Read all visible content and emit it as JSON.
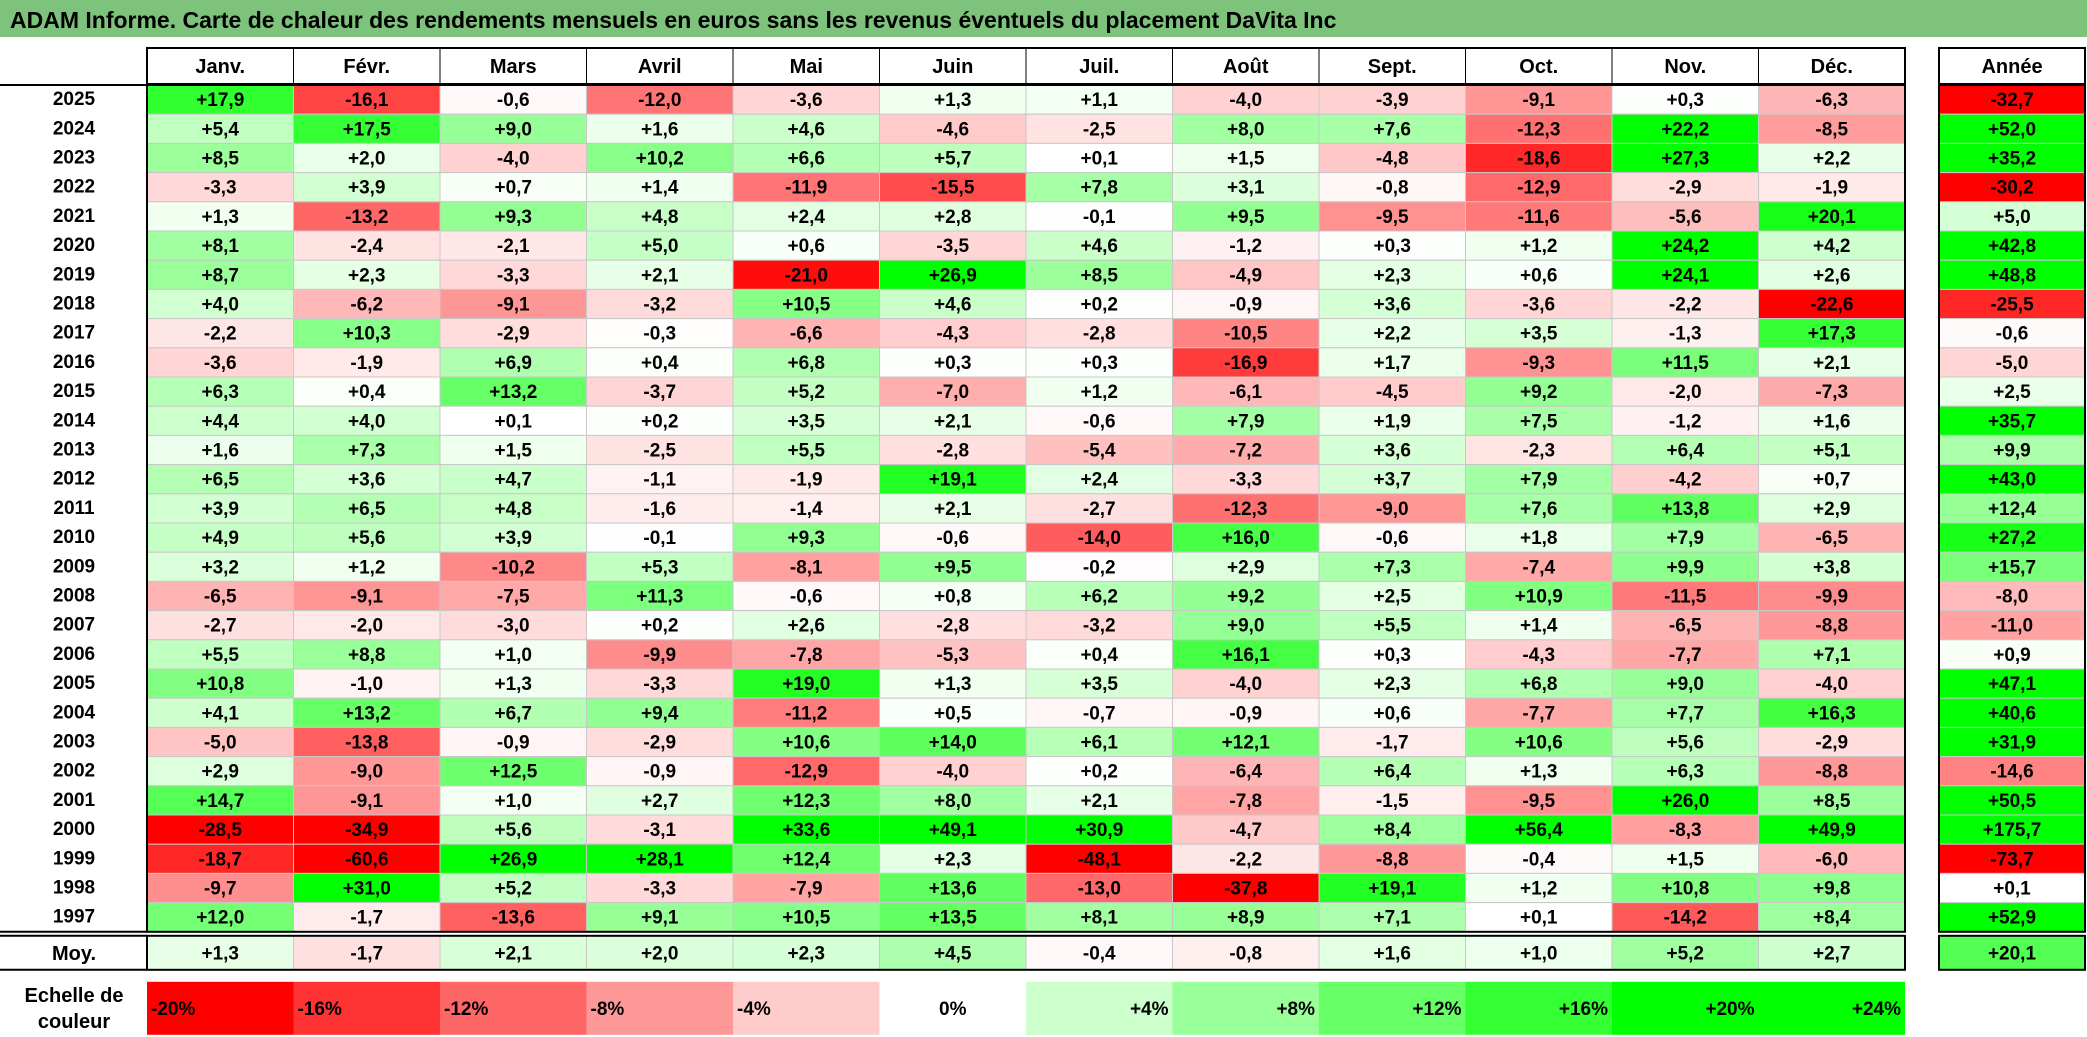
{
  "title": "ADAM Informe. Carte de chaleur des rendements mensuels en euros sans les revenus éventuels du placement DaVita Inc",
  "chart_data": {
    "type": "heatmap",
    "title": "ADAM Informe. Carte de chaleur des rendements mensuels en euros sans les revenus éventuels du placement DaVita Inc",
    "months": [
      "Janv.",
      "Févr.",
      "Mars",
      "Avril",
      "Mai",
      "Juin",
      "Juil.",
      "Août",
      "Sept.",
      "Oct.",
      "Nov.",
      "Déc."
    ],
    "year_header": "Année",
    "avg_label": "Moy.",
    "rows": [
      {
        "year": "2025",
        "values": [
          "+17,9",
          "-16,1",
          "-0,6",
          "-12,0",
          "-3,6",
          "+1,3",
          "+1,1",
          "-4,0",
          "-3,9",
          "-9,1",
          "+0,3",
          "-6,3"
        ],
        "total": "-32,7"
      },
      {
        "year": "2024",
        "values": [
          "+5,4",
          "+17,5",
          "+9,0",
          "+1,6",
          "+4,6",
          "-4,6",
          "-2,5",
          "+8,0",
          "+7,6",
          "-12,3",
          "+22,2",
          "-8,5"
        ],
        "total": "+52,0"
      },
      {
        "year": "2023",
        "values": [
          "+8,5",
          "+2,0",
          "-4,0",
          "+10,2",
          "+6,6",
          "+5,7",
          "+0,1",
          "+1,5",
          "-4,8",
          "-18,6",
          "+27,3",
          "+2,2"
        ],
        "total": "+35,2"
      },
      {
        "year": "2022",
        "values": [
          "-3,3",
          "+3,9",
          "+0,7",
          "+1,4",
          "-11,9",
          "-15,5",
          "+7,8",
          "+3,1",
          "-0,8",
          "-12,9",
          "-2,9",
          "-1,9"
        ],
        "total": "-30,2"
      },
      {
        "year": "2021",
        "values": [
          "+1,3",
          "-13,2",
          "+9,3",
          "+4,8",
          "+2,4",
          "+2,8",
          "-0,1",
          "+9,5",
          "-9,5",
          "-11,6",
          "-5,6",
          "+20,1"
        ],
        "total": "+5,0"
      },
      {
        "year": "2020",
        "values": [
          "+8,1",
          "-2,4",
          "-2,1",
          "+5,0",
          "+0,6",
          "-3,5",
          "+4,6",
          "-1,2",
          "+0,3",
          "+1,2",
          "+24,2",
          "+4,2"
        ],
        "total": "+42,8"
      },
      {
        "year": "2019",
        "values": [
          "+8,7",
          "+2,3",
          "-3,3",
          "+2,1",
          "-21,0",
          "+26,9",
          "+8,5",
          "-4,9",
          "+2,3",
          "+0,6",
          "+24,1",
          "+2,6"
        ],
        "total": "+48,8"
      },
      {
        "year": "2018",
        "values": [
          "+4,0",
          "-6,2",
          "-9,1",
          "-3,2",
          "+10,5",
          "+4,6",
          "+0,2",
          "-0,9",
          "+3,6",
          "-3,6",
          "-2,2",
          "-22,6"
        ],
        "total": "-25,5"
      },
      {
        "year": "2017",
        "values": [
          "-2,2",
          "+10,3",
          "-2,9",
          "-0,3",
          "-6,6",
          "-4,3",
          "-2,8",
          "-10,5",
          "+2,2",
          "+3,5",
          "-1,3",
          "+17,3"
        ],
        "total": "-0,6"
      },
      {
        "year": "2016",
        "values": [
          "-3,6",
          "-1,9",
          "+6,9",
          "+0,4",
          "+6,8",
          "+0,3",
          "+0,3",
          "-16,9",
          "+1,7",
          "-9,3",
          "+11,5",
          "+2,1"
        ],
        "total": "-5,0"
      },
      {
        "year": "2015",
        "values": [
          "+6,3",
          "+0,4",
          "+13,2",
          "-3,7",
          "+5,2",
          "-7,0",
          "+1,2",
          "-6,1",
          "-4,5",
          "+9,2",
          "-2,0",
          "-7,3"
        ],
        "total": "+2,5"
      },
      {
        "year": "2014",
        "values": [
          "+4,4",
          "+4,0",
          "+0,1",
          "+0,2",
          "+3,5",
          "+2,1",
          "-0,6",
          "+7,9",
          "+1,9",
          "+7,5",
          "-1,2",
          "+1,6"
        ],
        "total": "+35,7"
      },
      {
        "year": "2013",
        "values": [
          "+1,6",
          "+7,3",
          "+1,5",
          "-2,5",
          "+5,5",
          "-2,8",
          "-5,4",
          "-7,2",
          "+3,6",
          "-2,3",
          "+6,4",
          "+5,1"
        ],
        "total": "+9,9"
      },
      {
        "year": "2012",
        "values": [
          "+6,5",
          "+3,6",
          "+4,7",
          "-1,1",
          "-1,9",
          "+19,1",
          "+2,4",
          "-3,3",
          "+3,7",
          "+7,9",
          "-4,2",
          "+0,7"
        ],
        "total": "+43,0"
      },
      {
        "year": "2011",
        "values": [
          "+3,9",
          "+6,5",
          "+4,8",
          "-1,6",
          "-1,4",
          "+2,1",
          "-2,7",
          "-12,3",
          "-9,0",
          "+7,6",
          "+13,8",
          "+2,9"
        ],
        "total": "+12,4"
      },
      {
        "year": "2010",
        "values": [
          "+4,9",
          "+5,6",
          "+3,9",
          "-0,1",
          "+9,3",
          "-0,6",
          "-14,0",
          "+16,0",
          "-0,6",
          "+1,8",
          "+7,9",
          "-6,5"
        ],
        "total": "+27,2"
      },
      {
        "year": "2009",
        "values": [
          "+3,2",
          "+1,2",
          "-10,2",
          "+5,3",
          "-8,1",
          "+9,5",
          "-0,2",
          "+2,9",
          "+7,3",
          "-7,4",
          "+9,9",
          "+3,8"
        ],
        "total": "+15,7"
      },
      {
        "year": "2008",
        "values": [
          "-6,5",
          "-9,1",
          "-7,5",
          "+11,3",
          "-0,6",
          "+0,8",
          "+6,2",
          "+9,2",
          "+2,5",
          "+10,9",
          "-11,5",
          "-9,9"
        ],
        "total": "-8,0"
      },
      {
        "year": "2007",
        "values": [
          "-2,7",
          "-2,0",
          "-3,0",
          "+0,2",
          "+2,6",
          "-2,8",
          "-3,2",
          "+9,0",
          "+5,5",
          "+1,4",
          "-6,5",
          "-8,8"
        ],
        "total": "-11,0"
      },
      {
        "year": "2006",
        "values": [
          "+5,5",
          "+8,8",
          "+1,0",
          "-9,9",
          "-7,8",
          "-5,3",
          "+0,4",
          "+16,1",
          "+0,3",
          "-4,3",
          "-7,7",
          "+7,1"
        ],
        "total": "+0,9"
      },
      {
        "year": "2005",
        "values": [
          "+10,8",
          "-1,0",
          "+1,3",
          "-3,3",
          "+19,0",
          "+1,3",
          "+3,5",
          "-4,0",
          "+2,3",
          "+6,8",
          "+9,0",
          "-4,0"
        ],
        "total": "+47,1"
      },
      {
        "year": "2004",
        "values": [
          "+4,1",
          "+13,2",
          "+6,7",
          "+9,4",
          "-11,2",
          "+0,5",
          "-0,7",
          "-0,9",
          "+0,6",
          "-7,7",
          "+7,7",
          "+16,3"
        ],
        "total": "+40,6"
      },
      {
        "year": "2003",
        "values": [
          "-5,0",
          "-13,8",
          "-0,9",
          "-2,9",
          "+10,6",
          "+14,0",
          "+6,1",
          "+12,1",
          "-1,7",
          "+10,6",
          "+5,6",
          "-2,9"
        ],
        "total": "+31,9"
      },
      {
        "year": "2002",
        "values": [
          "+2,9",
          "-9,0",
          "+12,5",
          "-0,9",
          "-12,9",
          "-4,0",
          "+0,2",
          "-6,4",
          "+6,4",
          "+1,3",
          "+6,3",
          "-8,8"
        ],
        "total": "-14,6"
      },
      {
        "year": "2001",
        "values": [
          "+14,7",
          "-9,1",
          "+1,0",
          "+2,7",
          "+12,3",
          "+8,0",
          "+2,1",
          "-7,8",
          "-1,5",
          "-9,5",
          "+26,0",
          "+8,5"
        ],
        "total": "+50,5"
      },
      {
        "year": "2000",
        "values": [
          "-28,5",
          "-34,9",
          "+5,6",
          "-3,1",
          "+33,6",
          "+49,1",
          "+30,9",
          "-4,7",
          "+8,4",
          "+56,4",
          "-8,3",
          "+49,9"
        ],
        "total": "+175,7"
      },
      {
        "year": "1999",
        "values": [
          "-18,7",
          "-60,6",
          "+26,9",
          "+28,1",
          "+12,4",
          "+2,3",
          "-48,1",
          "-2,2",
          "-8,8",
          "-0,4",
          "+1,5",
          "-6,0"
        ],
        "total": "-73,7"
      },
      {
        "year": "1998",
        "values": [
          "-9,7",
          "+31,0",
          "+5,2",
          "-3,3",
          "-7,9",
          "+13,6",
          "-13,0",
          "-37,8",
          "+19,1",
          "+1,2",
          "+10,8",
          "+9,8"
        ],
        "total": "+0,1"
      },
      {
        "year": "1997",
        "values": [
          "+12,0",
          "-1,7",
          "-13,6",
          "+9,1",
          "+10,5",
          "+13,5",
          "+8,1",
          "+8,9",
          "+7,1",
          "+0,1",
          "-14,2",
          "+8,4"
        ],
        "total": "+52,9"
      }
    ],
    "average": {
      "values": [
        "+1,3",
        "-1,7",
        "+2,1",
        "+2,0",
        "+2,3",
        "+4,5",
        "-0,4",
        "-0,8",
        "+1,6",
        "+1,0",
        "+5,2",
        "+2,7"
      ],
      "total": "+20,1"
    },
    "scale": {
      "label_line1": "Echelle de",
      "label_line2": "couleur",
      "stops": [
        "-20%",
        "-16%",
        "-12%",
        "-8%",
        "-4%",
        "0%",
        "+4%",
        "+8%",
        "+12%",
        "+16%",
        "+20%",
        "+24%"
      ]
    },
    "colors": {
      "negative_max": "#ff0000",
      "zero": "#ffffff",
      "positive_max": "#00ff00",
      "title_bar": "#7dc37c"
    }
  }
}
